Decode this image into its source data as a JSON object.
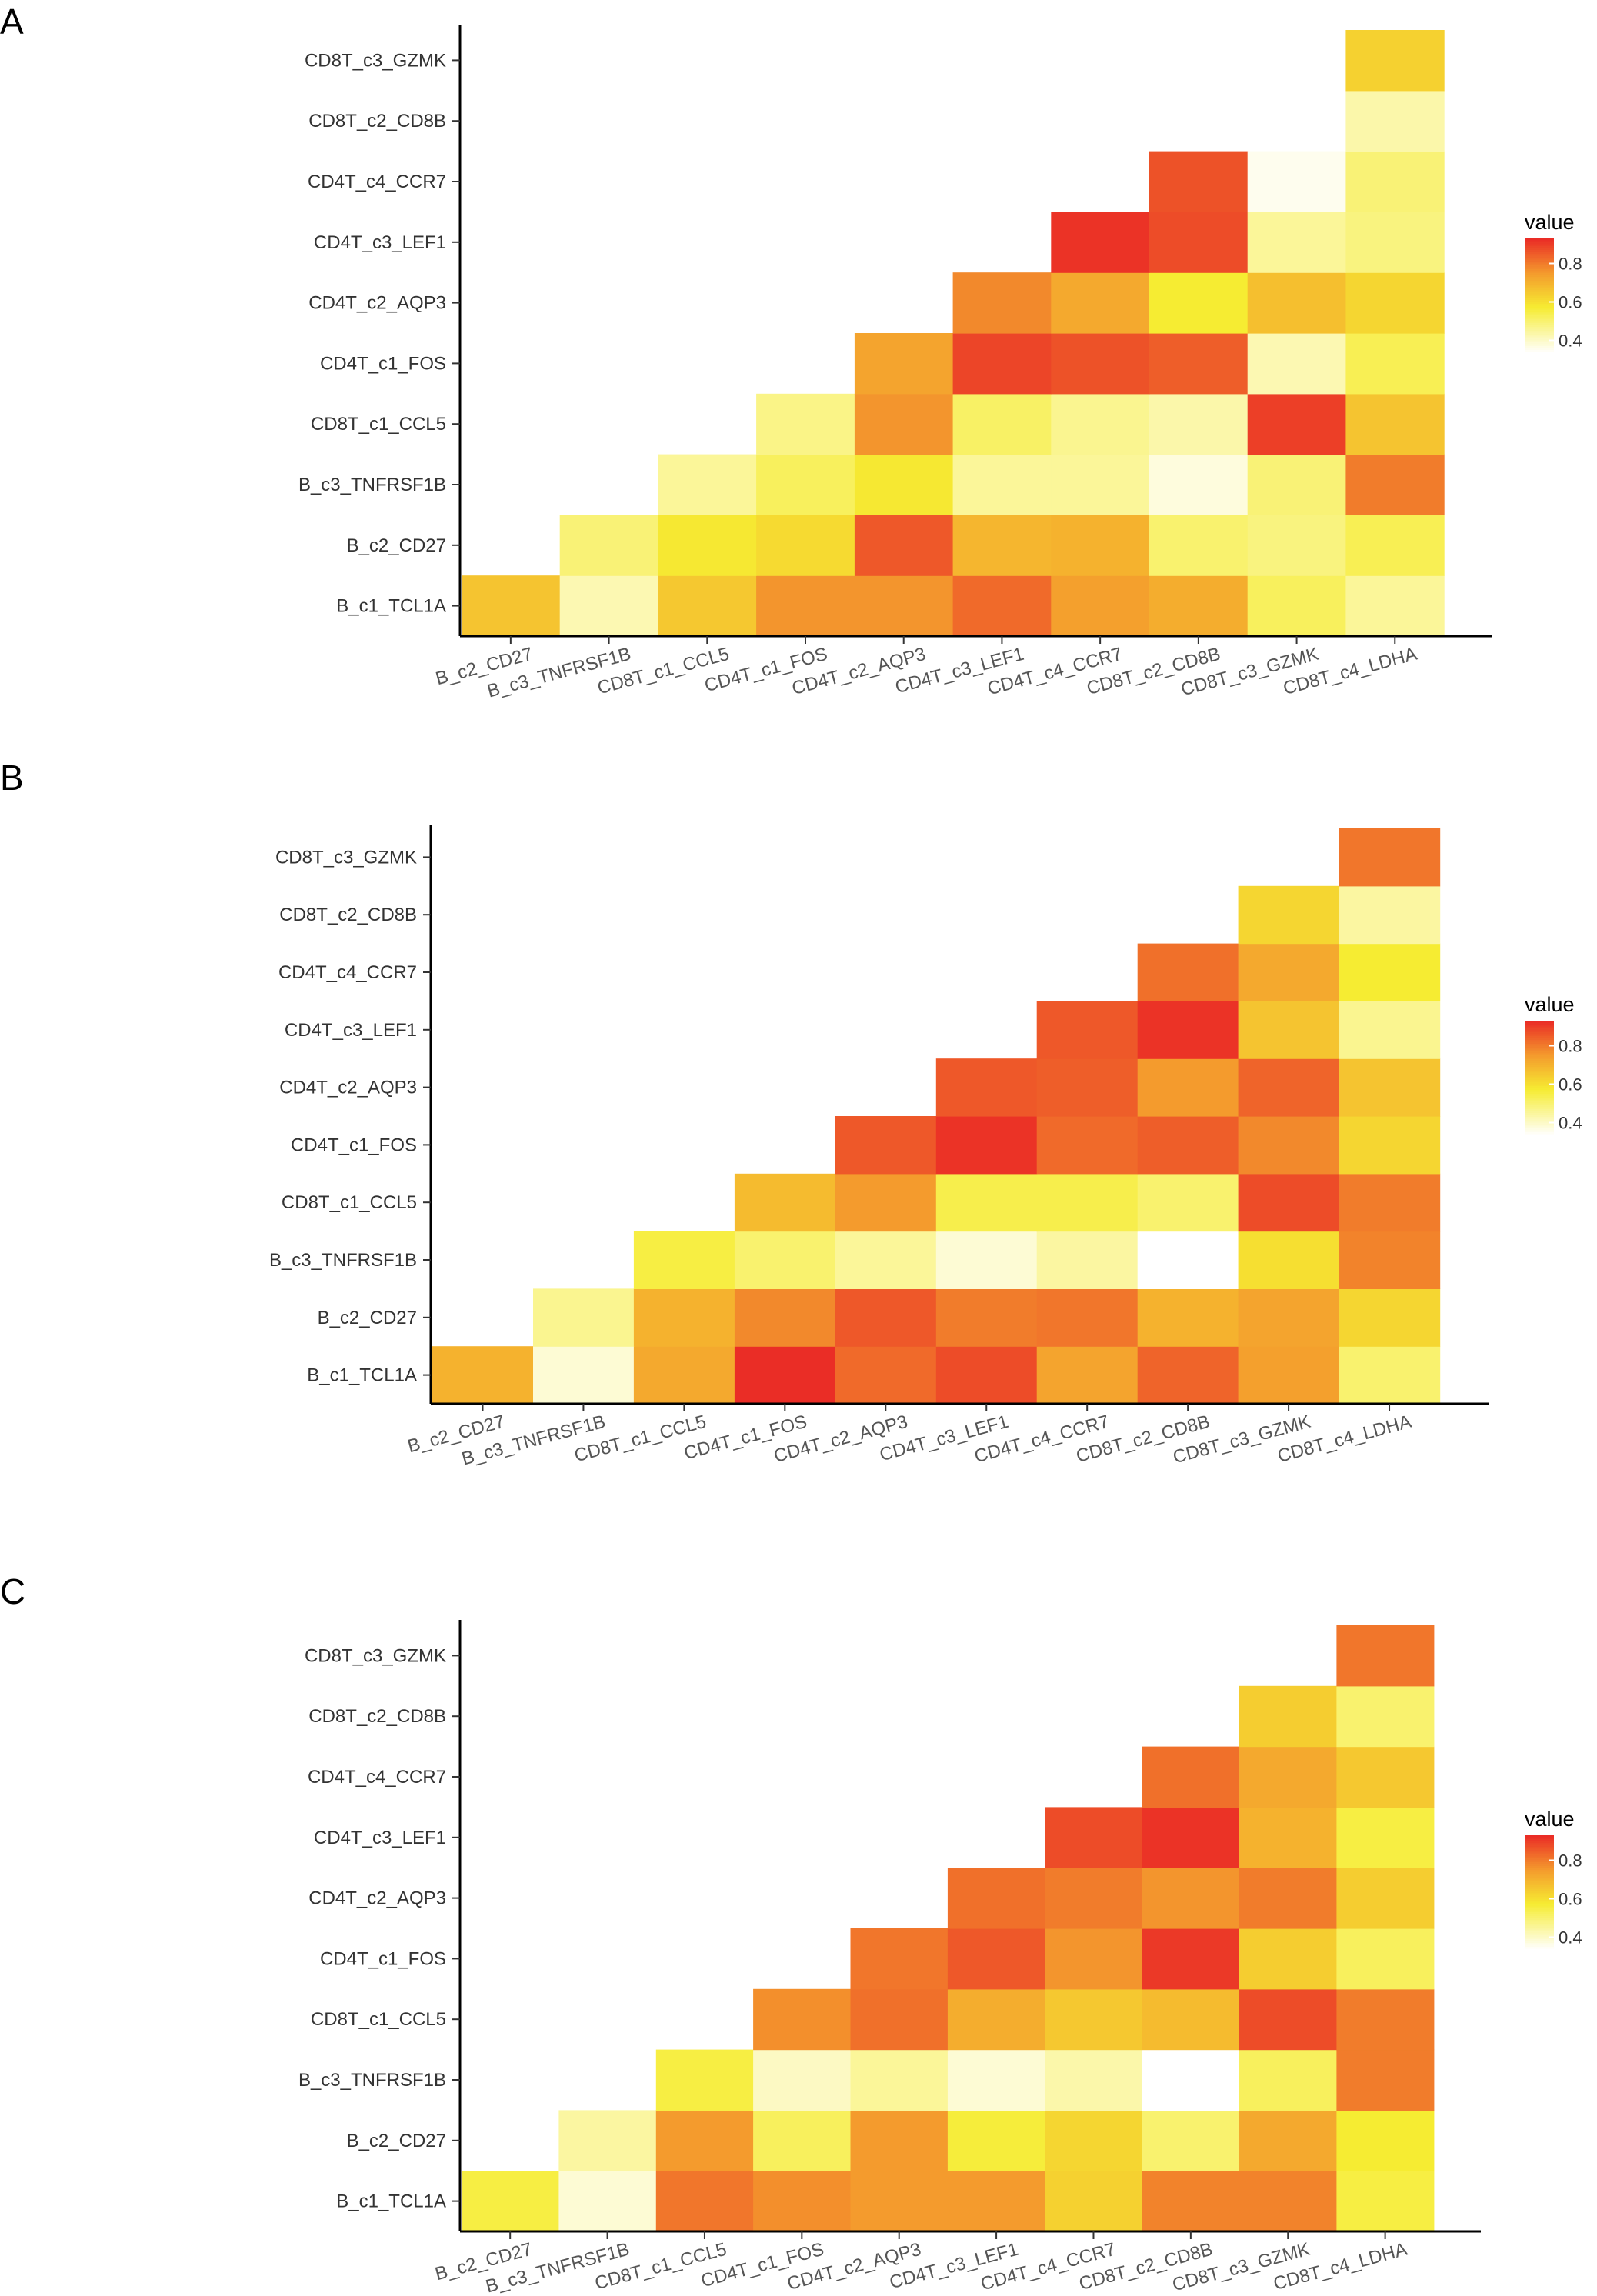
{
  "figure": {
    "panel_letters": [
      "A",
      "B",
      "C"
    ]
  },
  "chart_data": [
    {
      "panel": "A",
      "type": "heatmap",
      "title": "",
      "xlabel": "",
      "ylabel": "",
      "x_categories": [
        "B_c2_CD27",
        "B_c3_TNFRSF1B",
        "CD8T_c1_CCL5",
        "CD4T_c1_FOS",
        "CD4T_c2_AQP3",
        "CD4T_c3_LEF1",
        "CD4T_c4_CCR7",
        "CD8T_c2_CD8B",
        "CD8T_c3_GZMK",
        "CD8T_c4_LDHA"
      ],
      "y_categories": [
        "B_c1_TCL1A",
        "B_c2_CD27",
        "B_c3_TNFRSF1B",
        "CD8T_c1_CCL5",
        "CD4T_c1_FOS",
        "CD4T_c2_AQP3",
        "CD4T_c3_LEF1",
        "CD4T_c4_CCR7",
        "CD8T_c2_CD8B",
        "CD8T_c3_GZMK"
      ],
      "values": [
        [
          0.66,
          0.42,
          0.65,
          0.76,
          0.76,
          0.83,
          0.74,
          0.71,
          0.52,
          0.45
        ],
        [
          null,
          0.49,
          0.58,
          0.61,
          0.86,
          0.69,
          0.7,
          0.5,
          0.48,
          0.53
        ],
        [
          null,
          null,
          0.45,
          0.52,
          0.58,
          0.45,
          0.45,
          0.37,
          0.49,
          0.8
        ],
        [
          null,
          null,
          null,
          0.47,
          0.76,
          0.51,
          0.46,
          0.43,
          0.9,
          0.66
        ],
        [
          null,
          null,
          null,
          null,
          0.73,
          0.89,
          0.87,
          0.85,
          0.42,
          0.53
        ],
        [
          null,
          null,
          null,
          null,
          null,
          0.78,
          0.72,
          0.57,
          0.67,
          0.62
        ],
        [
          null,
          null,
          null,
          null,
          null,
          null,
          0.92,
          0.88,
          0.45,
          0.48
        ],
        [
          null,
          null,
          null,
          null,
          null,
          null,
          null,
          0.87,
          0.35,
          0.49
        ],
        [
          null,
          null,
          null,
          null,
          null,
          null,
          null,
          null,
          null,
          0.43
        ],
        [
          null,
          null,
          null,
          null,
          null,
          null,
          null,
          null,
          null,
          0.63
        ]
      ],
      "legend": {
        "title": "value",
        "ticks": [
          0.4,
          0.6,
          0.8
        ],
        "min": 0.33,
        "max": 0.93
      }
    },
    {
      "panel": "B",
      "type": "heatmap",
      "title": "",
      "xlabel": "",
      "ylabel": "",
      "x_categories": [
        "B_c2_CD27",
        "B_c3_TNFRSF1B",
        "CD8T_c1_CCL5",
        "CD4T_c1_FOS",
        "CD4T_c2_AQP3",
        "CD4T_c3_LEF1",
        "CD4T_c4_CCR7",
        "CD8T_c2_CD8B",
        "CD8T_c3_GZMK",
        "CD8T_c4_LDHA"
      ],
      "y_categories": [
        "B_c1_TCL1A",
        "B_c2_CD27",
        "B_c3_TNFRSF1B",
        "CD8T_c1_CCL5",
        "CD4T_c1_FOS",
        "CD4T_c2_AQP3",
        "CD4T_c3_LEF1",
        "CD4T_c4_CCR7",
        "CD8T_c2_CD8B",
        "CD8T_c3_GZMK"
      ],
      "values": [
        [
          0.7,
          0.38,
          0.72,
          0.93,
          0.83,
          0.88,
          0.73,
          0.84,
          0.74,
          0.5
        ],
        [
          null,
          0.46,
          0.7,
          0.78,
          0.86,
          0.8,
          0.81,
          0.7,
          0.73,
          0.62
        ],
        [
          null,
          null,
          0.55,
          0.5,
          0.45,
          0.38,
          0.44,
          0.33,
          0.6,
          0.79
        ],
        [
          null,
          null,
          null,
          0.68,
          0.75,
          0.54,
          0.54,
          0.5,
          0.88,
          0.8
        ],
        [
          null,
          null,
          null,
          null,
          0.86,
          0.92,
          0.83,
          0.85,
          0.78,
          0.62
        ],
        [
          null,
          null,
          null,
          null,
          null,
          0.86,
          0.85,
          0.75,
          0.84,
          0.66
        ],
        [
          null,
          null,
          null,
          null,
          null,
          null,
          0.86,
          0.92,
          0.66,
          0.46
        ],
        [
          null,
          null,
          null,
          null,
          null,
          null,
          null,
          0.82,
          0.72,
          0.57
        ],
        [
          null,
          null,
          null,
          null,
          null,
          null,
          null,
          null,
          0.62,
          0.44
        ],
        [
          null,
          null,
          null,
          null,
          null,
          null,
          null,
          null,
          null,
          0.81
        ]
      ],
      "legend": {
        "title": "value",
        "ticks": [
          0.4,
          0.6,
          0.8
        ],
        "min": 0.33,
        "max": 0.93
      }
    },
    {
      "panel": "C",
      "type": "heatmap",
      "title": "",
      "xlabel": "",
      "ylabel": "",
      "x_categories": [
        "B_c2_CD27",
        "B_c3_TNFRSF1B",
        "CD8T_c1_CCL5",
        "CD4T_c1_FOS",
        "CD4T_c2_AQP3",
        "CD4T_c3_LEF1",
        "CD4T_c4_CCR7",
        "CD8T_c2_CD8B",
        "CD8T_c3_GZMK",
        "CD8T_c4_LDHA"
      ],
      "y_categories": [
        "B_c1_TCL1A",
        "B_c2_CD27",
        "B_c3_TNFRSF1B",
        "CD8T_c1_CCL5",
        "CD4T_c1_FOS",
        "CD4T_c2_AQP3",
        "CD4T_c3_LEF1",
        "CD4T_c4_CCR7",
        "CD8T_c2_CD8B",
        "CD8T_c3_GZMK"
      ],
      "values": [
        [
          0.55,
          0.38,
          0.81,
          0.77,
          0.75,
          0.75,
          0.63,
          0.79,
          0.79,
          0.55
        ],
        [
          null,
          0.44,
          0.75,
          0.52,
          0.75,
          0.56,
          0.62,
          0.5,
          0.72,
          0.57
        ],
        [
          null,
          null,
          0.55,
          0.4,
          0.45,
          0.38,
          0.43,
          0.33,
          0.52,
          0.8
        ],
        [
          null,
          null,
          null,
          0.77,
          0.82,
          0.71,
          0.65,
          0.68,
          0.88,
          0.8
        ],
        [
          null,
          null,
          null,
          null,
          0.81,
          0.86,
          0.76,
          0.91,
          0.64,
          0.52
        ],
        [
          null,
          null,
          null,
          null,
          null,
          0.82,
          0.8,
          0.76,
          0.8,
          0.64
        ],
        [
          null,
          null,
          null,
          null,
          null,
          null,
          0.88,
          0.92,
          0.7,
          0.55
        ],
        [
          null,
          null,
          null,
          null,
          null,
          null,
          null,
          0.82,
          0.72,
          0.65
        ],
        [
          null,
          null,
          null,
          null,
          null,
          null,
          null,
          null,
          0.64,
          0.5
        ],
        [
          null,
          null,
          null,
          null,
          null,
          null,
          null,
          null,
          null,
          0.81
        ]
      ],
      "legend": {
        "title": "value",
        "ticks": [
          0.4,
          0.6,
          0.8
        ],
        "min": 0.33,
        "max": 0.93
      }
    }
  ]
}
